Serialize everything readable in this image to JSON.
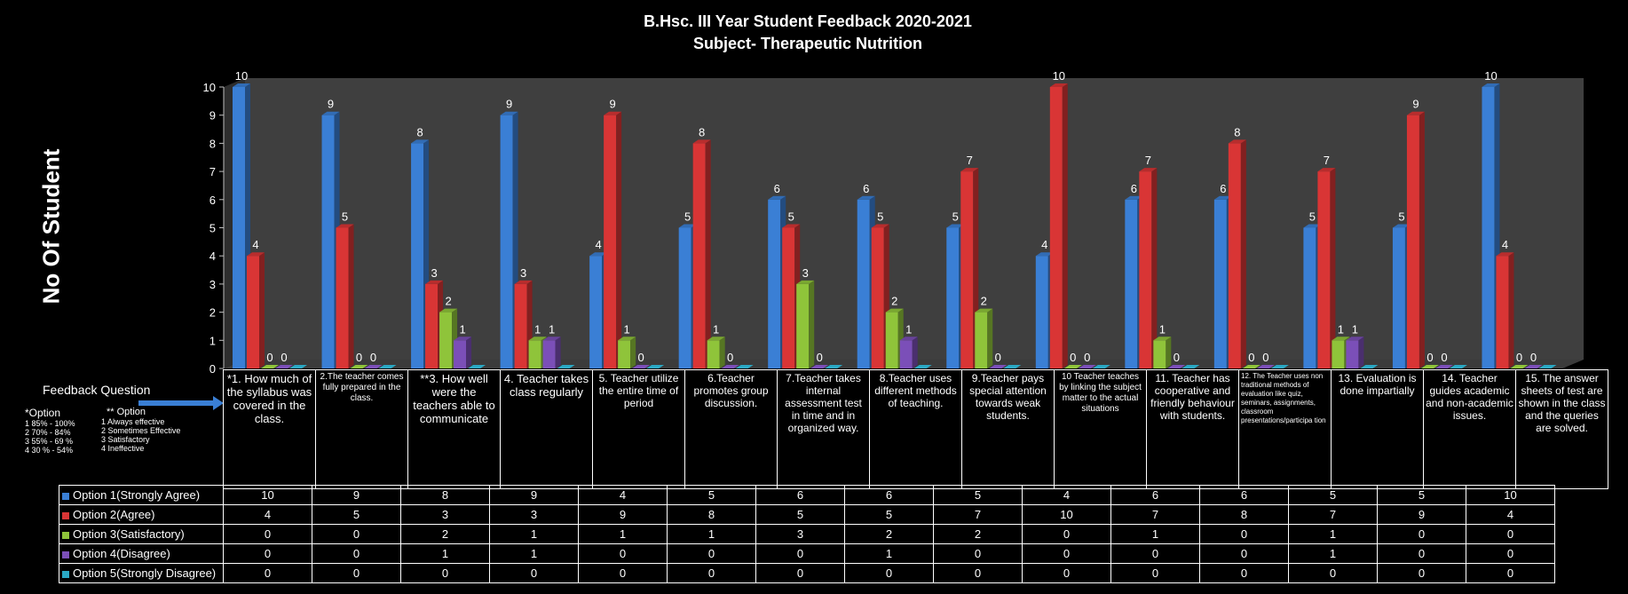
{
  "chart_data": {
    "type": "bar",
    "title": "B.Hsc. III Year Student Feedback 2020-2021",
    "subtitle": "Subject- Therapeutic Nutrition",
    "ylabel": "No Of Student",
    "xlabel": "Feedback  Question",
    "ylim": [
      0,
      10
    ],
    "yticks": [
      "0",
      "1",
      "2",
      "3",
      "4",
      "5",
      "6",
      "7",
      "8",
      "9",
      "10"
    ],
    "grid": false,
    "legend": "table-bottom-left",
    "categories": [
      "*1. How much of the syllabus was covered in the class.",
      "2.The teacher comes fully prepared in the class.",
      "**3. How well were the teachers able to communicate",
      "4. Teacher takes class regularly",
      "5. Teacher utilize the entire time of period",
      "6.Teacher promotes group discussion.",
      "7.Teacher takes internal assessment test in time and in organized way.",
      "8.Teacher uses different methods of teaching.",
      "9.Teacher pays special attention towards weak students.",
      "10 Teacher teaches by linking the subject matter to the actual situations",
      "11. Teacher has cooperative and friendly behaviour with students.",
      "12. The Teacher uses non traditional methods of evaluation like quiz, seminars, assignments, classroom presentations/participa tion",
      "13. Evaluation is done impartially",
      "14. Teacher guides academic and non-academic issues.",
      "15. The answer sheets of test are shown in the class and the queries are solved."
    ],
    "series": [
      {
        "name": "Option 1(Strongly Agree)",
        "color": "#3a7fd5",
        "values": [
          10,
          9,
          8,
          9,
          4,
          5,
          6,
          6,
          5,
          4,
          6,
          6,
          5,
          5,
          10
        ]
      },
      {
        "name": "Option 2(Agree)",
        "color": "#d93535",
        "values": [
          4,
          5,
          3,
          3,
          9,
          8,
          5,
          5,
          7,
          10,
          7,
          8,
          7,
          9,
          4
        ]
      },
      {
        "name": "Option 3(Satisfactory)",
        "color": "#8fc43a",
        "values": [
          0,
          0,
          2,
          1,
          1,
          1,
          3,
          2,
          2,
          0,
          1,
          0,
          1,
          0,
          0
        ]
      },
      {
        "name": "Option 4(Disagree)",
        "color": "#7b4fb8",
        "values": [
          0,
          0,
          1,
          1,
          0,
          0,
          0,
          1,
          0,
          0,
          0,
          0,
          1,
          0,
          0
        ]
      },
      {
        "name": "Option 5(Strongly Disagree)",
        "color": "#2aa8c4",
        "values": [
          0,
          0,
          0,
          0,
          0,
          0,
          0,
          0,
          0,
          0,
          0,
          0,
          0,
          0,
          0
        ]
      }
    ]
  },
  "notes": {
    "col1_head": "Option",
    "col1_star": "*",
    "col1_lines": [
      "1 85% - 100%",
      "2 70% - 84%",
      "3 55% - 69 %",
      "4 30 % - 54%"
    ],
    "col2_head": "** Option",
    "col2_lines": [
      "1 Always effective",
      "2 Sometimes Effective",
      "3 Satisfactory",
      "4 Ineffective"
    ]
  }
}
